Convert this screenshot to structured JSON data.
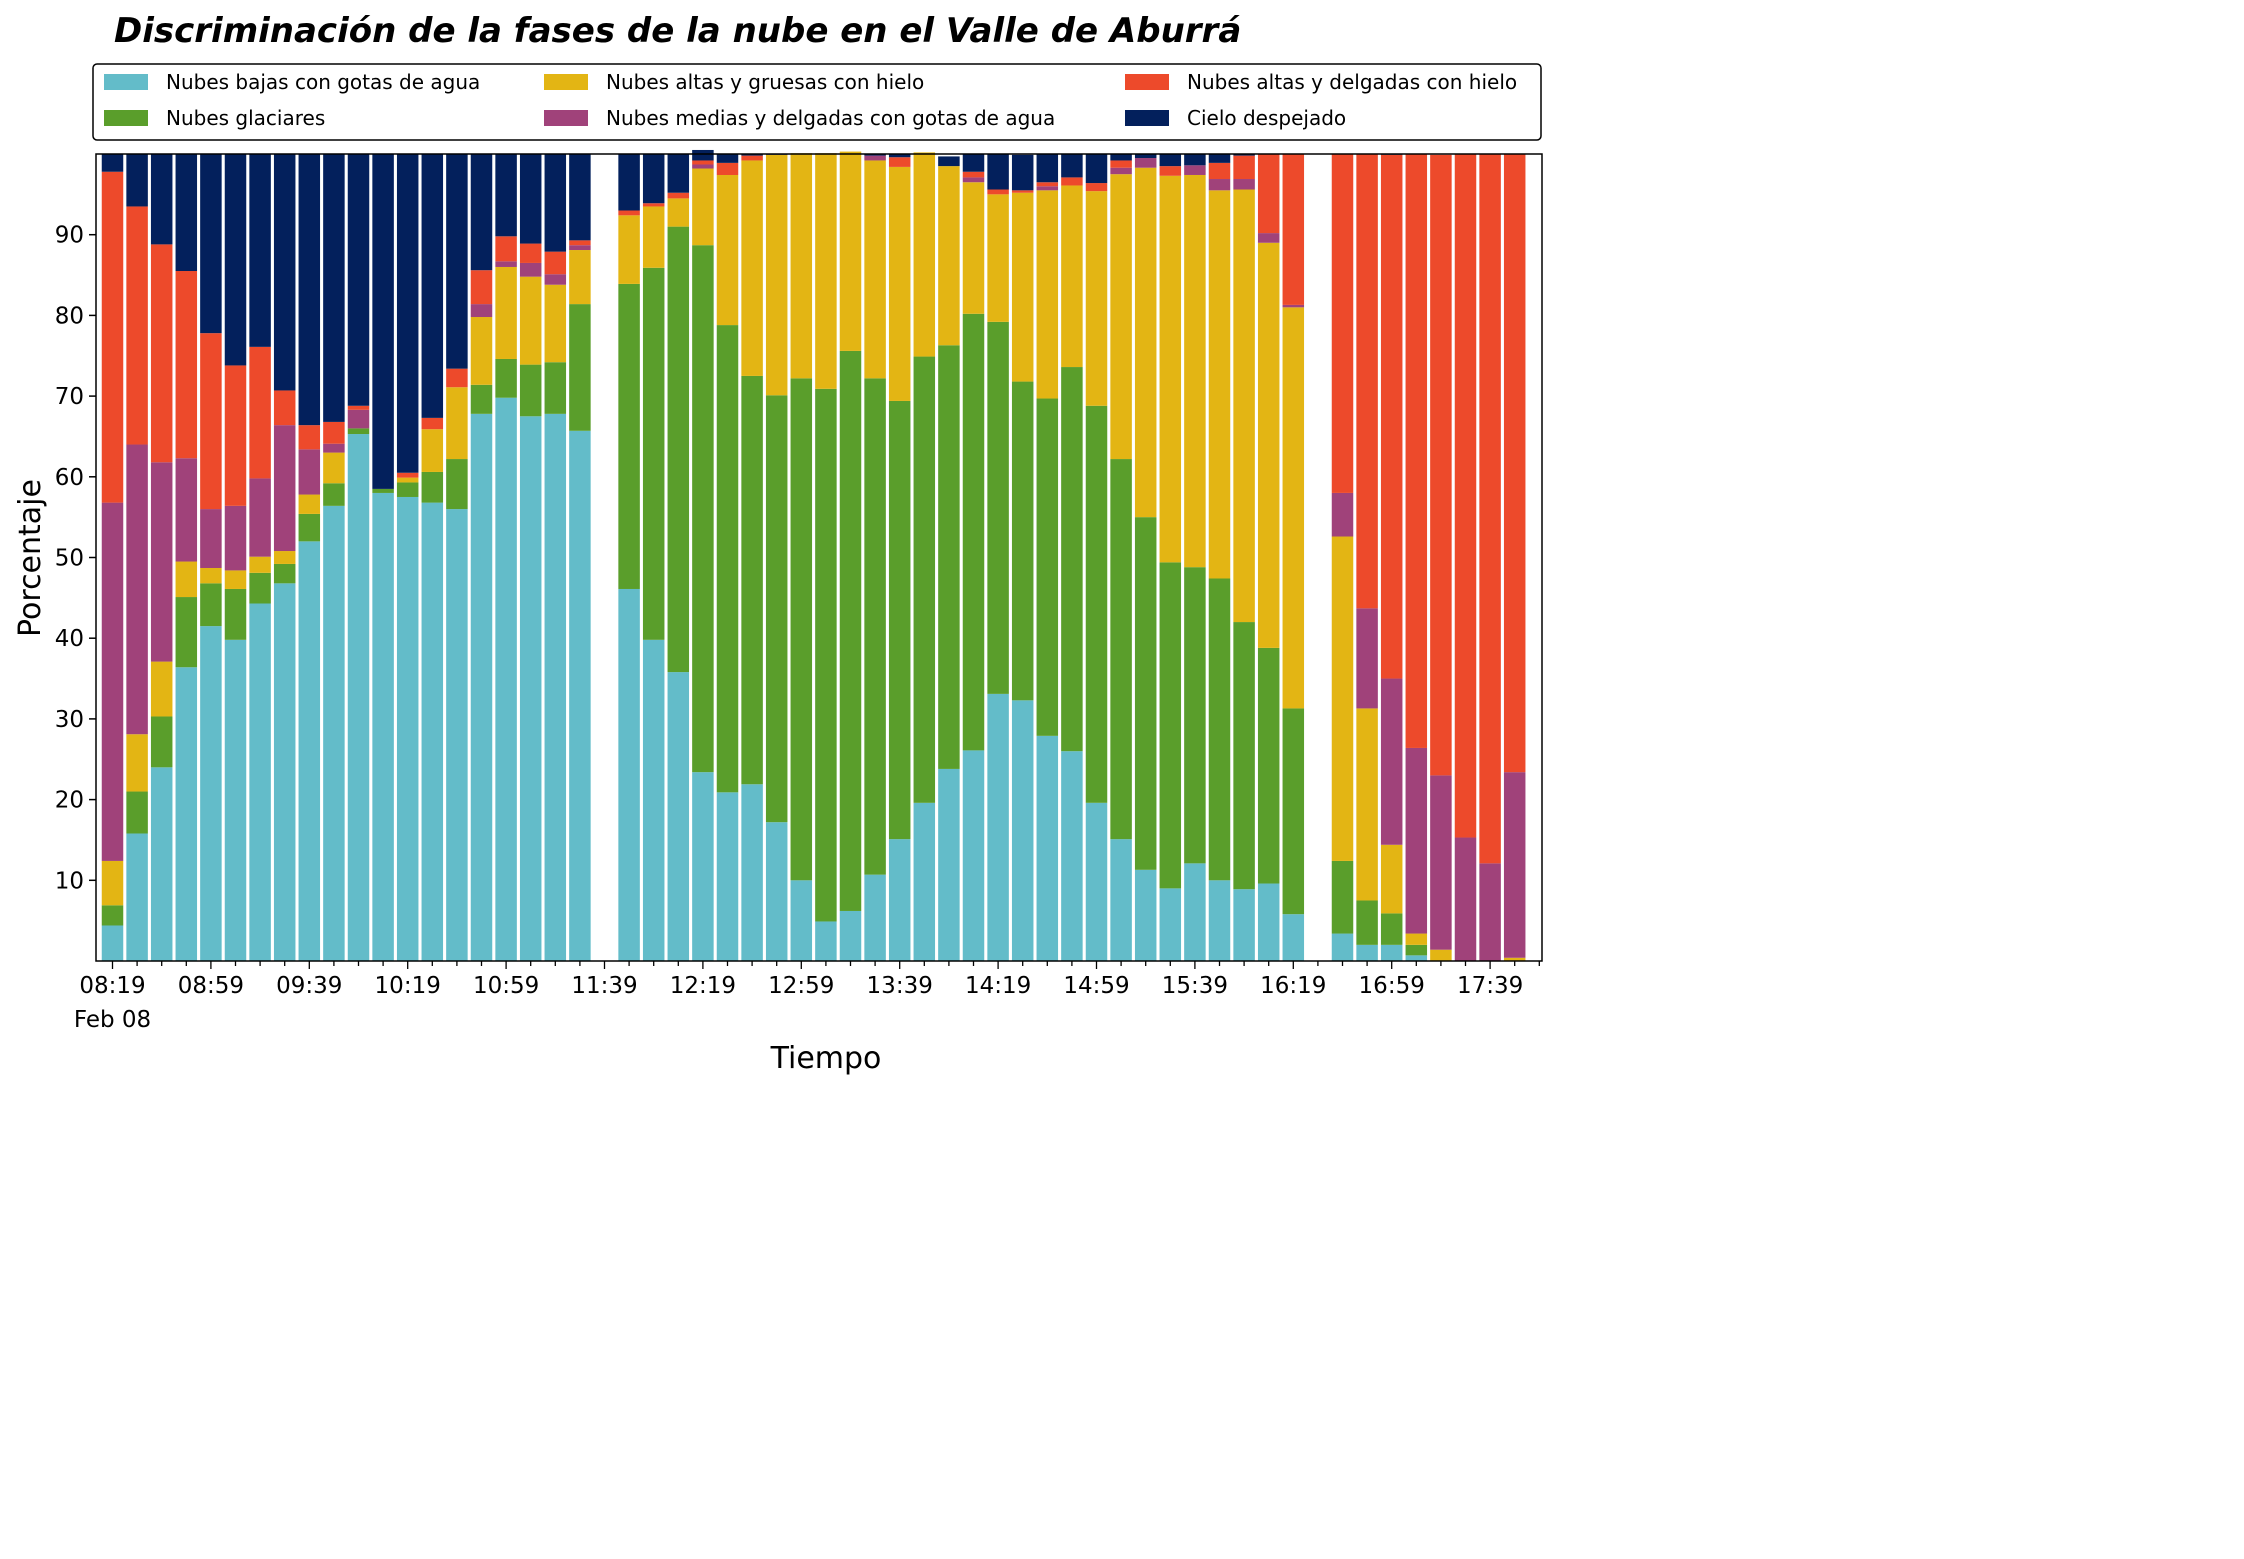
{
  "chart_data": {
    "type": "bar",
    "stacked": true,
    "title": "Discriminación de la fases de la nube en el Valle de Aburrá",
    "xlabel": "Tiempo",
    "ylabel": "Porcentaje",
    "ylim": [
      0,
      100
    ],
    "yticks": [
      10,
      20,
      30,
      40,
      50,
      60,
      70,
      80,
      90
    ],
    "grid": false,
    "legend_position": "top",
    "x_start": "08:19",
    "x_end": "17:59",
    "interval_minutes": 10,
    "xtick_labels": [
      "08:19",
      "08:59",
      "09:39",
      "10:19",
      "10:59",
      "11:39",
      "12:19",
      "12:59",
      "13:39",
      "14:19",
      "14:59",
      "15:39",
      "16:19",
      "16:59",
      "17:39"
    ],
    "xtick_date_label": "Feb 08",
    "categories": [
      "08:19",
      "08:29",
      "08:39",
      "08:49",
      "08:59",
      "09:09",
      "09:19",
      "09:29",
      "09:39",
      "09:49",
      "09:59",
      "10:09",
      "10:19",
      "10:29",
      "10:39",
      "10:49",
      "10:59",
      "11:09",
      "11:19",
      "11:29",
      "11:39",
      "11:49",
      "11:59",
      "12:09",
      "12:19",
      "12:29",
      "12:39",
      "12:49",
      "12:59",
      "13:09",
      "13:19",
      "13:29",
      "13:39",
      "13:49",
      "13:59",
      "14:09",
      "14:19",
      "14:29",
      "14:39",
      "14:49",
      "14:59",
      "15:09",
      "15:19",
      "15:29",
      "15:39",
      "15:49",
      "15:59",
      "16:09",
      "16:19",
      "16:29",
      "16:39",
      "16:49",
      "16:59",
      "17:09",
      "17:19",
      "17:29",
      "17:39",
      "17:49"
    ],
    "series": [
      {
        "name": "Nubes bajas con gotas de agua",
        "color": "#63bcc9",
        "values": [
          4.4,
          15.8,
          24.0,
          36.4,
          41.5,
          39.8,
          44.3,
          46.8,
          52.0,
          56.4,
          65.3,
          58.0,
          57.5,
          56.8,
          56.0,
          67.8,
          69.8,
          67.5,
          67.8,
          65.7,
          null,
          46.1,
          39.8,
          35.8,
          23.4,
          20.9,
          21.9,
          17.2,
          10.0,
          4.9,
          6.2,
          10.7,
          15.1,
          19.6,
          23.8,
          26.1,
          33.1,
          32.3,
          27.9,
          26.0,
          19.6,
          15.1,
          11.3,
          9.0,
          12.1,
          10.0,
          8.9,
          9.6,
          5.8,
          null,
          3.4,
          2.0,
          2.0,
          0.7,
          0.0,
          0.0,
          0.0,
          0.0
        ]
      },
      {
        "name": "Nubes glaciares",
        "color": "#5a9e2b",
        "values": [
          2.5,
          5.2,
          6.3,
          8.7,
          5.3,
          6.3,
          3.8,
          2.4,
          3.4,
          2.8,
          0.7,
          0.5,
          1.8,
          3.8,
          6.2,
          3.6,
          4.8,
          6.4,
          6.4,
          15.7,
          null,
          37.8,
          46.1,
          55.2,
          65.3,
          57.9,
          50.6,
          52.9,
          62.2,
          66.0,
          69.4,
          61.5,
          54.3,
          55.3,
          52.5,
          54.1,
          46.1,
          39.5,
          41.8,
          47.6,
          49.2,
          47.1,
          43.7,
          40.4,
          36.7,
          37.4,
          33.1,
          29.2,
          25.5,
          null,
          9.0,
          5.5,
          3.9,
          1.3,
          0.0,
          0.0,
          0.0,
          0.0
        ]
      },
      {
        "name": "Nubes altas y gruesas con hielo",
        "color": "#e3b514",
        "values": [
          5.5,
          7.1,
          6.8,
          4.4,
          1.9,
          2.3,
          2.0,
          1.6,
          2.4,
          3.8,
          0.0,
          0.0,
          0.6,
          5.3,
          8.9,
          8.4,
          11.4,
          10.9,
          9.6,
          6.7,
          null,
          8.5,
          7.6,
          3.5,
          9.5,
          18.6,
          26.7,
          29.8,
          27.9,
          29.2,
          24.7,
          27.0,
          29.0,
          25.3,
          22.2,
          16.3,
          15.8,
          23.4,
          25.8,
          22.5,
          26.6,
          35.3,
          43.3,
          47.9,
          48.6,
          48.1,
          53.6,
          50.2,
          49.7,
          null,
          40.2,
          23.8,
          8.5,
          1.4,
          1.4,
          0.0,
          0.0,
          0.4
        ]
      },
      {
        "name": "Nubes medias y delgadas con gotas de agua",
        "color": "#a0427a",
        "values": [
          44.4,
          35.9,
          24.7,
          12.8,
          7.3,
          8.0,
          9.7,
          15.6,
          5.6,
          1.1,
          2.3,
          0.0,
          0.0,
          0.0,
          0.0,
          1.6,
          0.7,
          1.7,
          1.3,
          0.6,
          null,
          0.0,
          0.0,
          0.0,
          0.5,
          0.0,
          0.0,
          0.0,
          0.0,
          0.0,
          0.0,
          0.6,
          0.0,
          0.0,
          0.0,
          0.6,
          0.0,
          0.0,
          0.5,
          0.0,
          0.0,
          0.8,
          1.2,
          0.0,
          1.2,
          1.4,
          1.3,
          1.2,
          0.3,
          null,
          5.4,
          12.4,
          20.6,
          23.0,
          21.6,
          15.3,
          12.1,
          23.0
        ]
      },
      {
        "name": "Nubes altas y delgadas con hielo",
        "color": "#ed4a2b",
        "values": [
          41.0,
          29.5,
          27.0,
          23.2,
          21.8,
          17.4,
          16.3,
          4.3,
          3.0,
          2.7,
          0.5,
          0.0,
          0.6,
          1.4,
          2.3,
          4.2,
          3.1,
          2.4,
          2.8,
          0.6,
          null,
          0.6,
          0.4,
          0.7,
          0.5,
          1.5,
          0.6,
          0.0,
          0.0,
          0.0,
          0.0,
          0.0,
          1.2,
          0.0,
          0.0,
          0.7,
          0.6,
          0.3,
          0.5,
          1.0,
          1.0,
          0.9,
          0.0,
          1.2,
          0.0,
          2.0,
          2.9,
          9.8,
          18.7,
          null,
          42.0,
          56.3,
          64.9,
          73.6,
          76.9,
          84.7,
          87.9,
          76.6
        ]
      },
      {
        "name": "Cielo despejado",
        "color": "#03205c",
        "values": [
          2.2,
          6.5,
          11.2,
          14.5,
          22.2,
          26.2,
          23.9,
          29.3,
          33.6,
          33.2,
          31.2,
          41.5,
          39.5,
          32.7,
          26.6,
          14.4,
          10.2,
          11.1,
          12.1,
          10.7,
          null,
          7.0,
          6.1,
          4.8,
          1.3,
          1.1,
          0.2,
          0.1,
          0.0,
          0.0,
          0.0,
          0.2,
          0.4,
          0.0,
          1.2,
          2.2,
          4.4,
          4.4,
          3.5,
          2.9,
          3.6,
          0.8,
          0.5,
          1.5,
          1.4,
          1.1,
          0.2,
          0.0,
          0.0,
          null,
          0.0,
          0.0,
          0.1,
          0.0,
          0.0,
          0.0,
          0.0,
          0.0
        ]
      }
    ]
  }
}
